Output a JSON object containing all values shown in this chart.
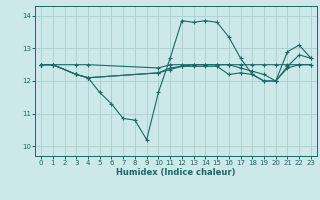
{
  "xlabel": "Humidex (Indice chaleur)",
  "xlim": [
    -0.5,
    23.5
  ],
  "ylim": [
    9.7,
    14.3
  ],
  "bg_color": "#cce8e8",
  "grid_color": "#aad0d0",
  "line_color": "#1a6868",
  "series1_x": [
    0,
    1,
    3,
    4,
    10,
    11,
    12,
    13,
    14,
    15,
    16,
    17,
    18,
    19,
    20,
    21,
    22,
    23
  ],
  "series1_y": [
    12.5,
    12.5,
    12.5,
    12.5,
    12.4,
    12.5,
    12.5,
    12.5,
    12.5,
    12.5,
    12.5,
    12.5,
    12.5,
    12.5,
    12.5,
    12.5,
    12.5,
    12.5
  ],
  "series2_x": [
    0,
    1,
    3,
    4,
    5,
    6,
    7,
    8,
    9,
    10,
    11,
    12,
    13,
    14,
    15,
    16,
    17,
    18,
    19,
    20,
    21,
    22,
    23
  ],
  "series2_y": [
    12.5,
    12.5,
    12.2,
    12.1,
    11.65,
    11.3,
    10.85,
    10.8,
    10.2,
    11.65,
    12.7,
    13.85,
    13.8,
    13.85,
    13.8,
    13.35,
    12.7,
    12.2,
    12.0,
    12.0,
    12.9,
    13.1,
    12.7
  ],
  "series3_x": [
    0,
    1,
    3,
    4,
    10,
    11,
    12,
    13,
    14,
    15,
    16,
    17,
    18,
    19,
    20,
    21,
    22,
    23
  ],
  "series3_y": [
    12.5,
    12.5,
    12.2,
    12.1,
    12.25,
    12.4,
    12.45,
    12.5,
    12.5,
    12.5,
    12.5,
    12.4,
    12.3,
    12.2,
    12.0,
    12.4,
    12.5,
    12.5
  ],
  "series4_x": [
    0,
    1,
    3,
    4,
    10,
    11,
    12,
    13,
    14,
    15,
    16,
    17,
    18,
    19,
    20,
    21,
    22,
    23
  ],
  "series4_y": [
    12.5,
    12.5,
    12.2,
    12.1,
    12.25,
    12.35,
    12.45,
    12.45,
    12.45,
    12.45,
    12.2,
    12.25,
    12.2,
    12.0,
    12.0,
    12.45,
    12.8,
    12.7
  ],
  "ytick_values": [
    10,
    11,
    12,
    13,
    14
  ],
  "xtick_labels": [
    "0",
    "1",
    "2",
    "3",
    "4",
    "5",
    "6",
    "7",
    "8",
    "9",
    "10",
    "11",
    "12",
    "13",
    "14",
    "15",
    "16",
    "17",
    "18",
    "19",
    "20",
    "21",
    "22",
    "23"
  ]
}
